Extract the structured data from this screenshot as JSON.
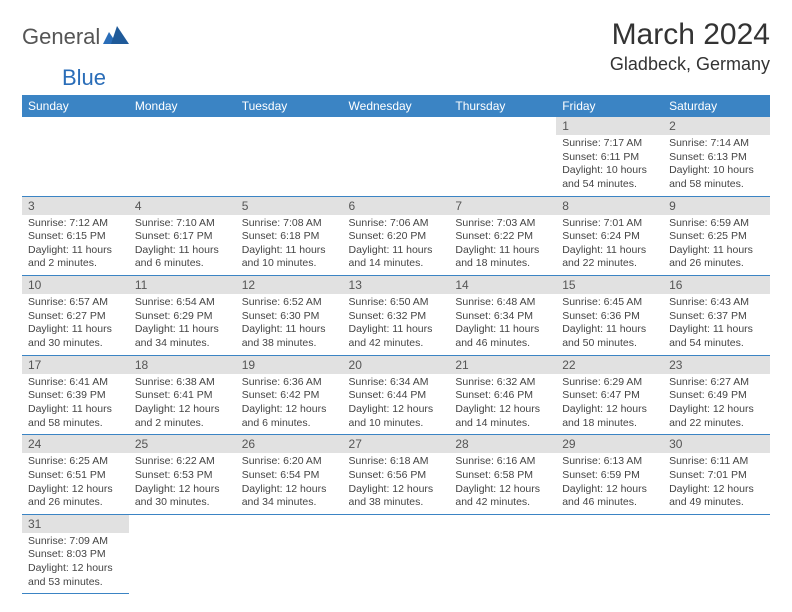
{
  "brand": {
    "part1": "General",
    "part2": "Blue"
  },
  "title": "March 2024",
  "location": "Gladbeck, Germany",
  "colors": {
    "header_bg": "#3b84c4",
    "header_text": "#ffffff",
    "daynum_bg": "#e1e1e1",
    "border": "#3b84c4",
    "brand_blue": "#2a6db8",
    "text": "#333333"
  },
  "weekdays": [
    "Sunday",
    "Monday",
    "Tuesday",
    "Wednesday",
    "Thursday",
    "Friday",
    "Saturday"
  ],
  "weeks": [
    [
      null,
      null,
      null,
      null,
      null,
      {
        "n": "1",
        "sr": "Sunrise: 7:17 AM",
        "ss": "Sunset: 6:11 PM",
        "dl": "Daylight: 10 hours and 54 minutes."
      },
      {
        "n": "2",
        "sr": "Sunrise: 7:14 AM",
        "ss": "Sunset: 6:13 PM",
        "dl": "Daylight: 10 hours and 58 minutes."
      }
    ],
    [
      {
        "n": "3",
        "sr": "Sunrise: 7:12 AM",
        "ss": "Sunset: 6:15 PM",
        "dl": "Daylight: 11 hours and 2 minutes."
      },
      {
        "n": "4",
        "sr": "Sunrise: 7:10 AM",
        "ss": "Sunset: 6:17 PM",
        "dl": "Daylight: 11 hours and 6 minutes."
      },
      {
        "n": "5",
        "sr": "Sunrise: 7:08 AM",
        "ss": "Sunset: 6:18 PM",
        "dl": "Daylight: 11 hours and 10 minutes."
      },
      {
        "n": "6",
        "sr": "Sunrise: 7:06 AM",
        "ss": "Sunset: 6:20 PM",
        "dl": "Daylight: 11 hours and 14 minutes."
      },
      {
        "n": "7",
        "sr": "Sunrise: 7:03 AM",
        "ss": "Sunset: 6:22 PM",
        "dl": "Daylight: 11 hours and 18 minutes."
      },
      {
        "n": "8",
        "sr": "Sunrise: 7:01 AM",
        "ss": "Sunset: 6:24 PM",
        "dl": "Daylight: 11 hours and 22 minutes."
      },
      {
        "n": "9",
        "sr": "Sunrise: 6:59 AM",
        "ss": "Sunset: 6:25 PM",
        "dl": "Daylight: 11 hours and 26 minutes."
      }
    ],
    [
      {
        "n": "10",
        "sr": "Sunrise: 6:57 AM",
        "ss": "Sunset: 6:27 PM",
        "dl": "Daylight: 11 hours and 30 minutes."
      },
      {
        "n": "11",
        "sr": "Sunrise: 6:54 AM",
        "ss": "Sunset: 6:29 PM",
        "dl": "Daylight: 11 hours and 34 minutes."
      },
      {
        "n": "12",
        "sr": "Sunrise: 6:52 AM",
        "ss": "Sunset: 6:30 PM",
        "dl": "Daylight: 11 hours and 38 minutes."
      },
      {
        "n": "13",
        "sr": "Sunrise: 6:50 AM",
        "ss": "Sunset: 6:32 PM",
        "dl": "Daylight: 11 hours and 42 minutes."
      },
      {
        "n": "14",
        "sr": "Sunrise: 6:48 AM",
        "ss": "Sunset: 6:34 PM",
        "dl": "Daylight: 11 hours and 46 minutes."
      },
      {
        "n": "15",
        "sr": "Sunrise: 6:45 AM",
        "ss": "Sunset: 6:36 PM",
        "dl": "Daylight: 11 hours and 50 minutes."
      },
      {
        "n": "16",
        "sr": "Sunrise: 6:43 AM",
        "ss": "Sunset: 6:37 PM",
        "dl": "Daylight: 11 hours and 54 minutes."
      }
    ],
    [
      {
        "n": "17",
        "sr": "Sunrise: 6:41 AM",
        "ss": "Sunset: 6:39 PM",
        "dl": "Daylight: 11 hours and 58 minutes."
      },
      {
        "n": "18",
        "sr": "Sunrise: 6:38 AM",
        "ss": "Sunset: 6:41 PM",
        "dl": "Daylight: 12 hours and 2 minutes."
      },
      {
        "n": "19",
        "sr": "Sunrise: 6:36 AM",
        "ss": "Sunset: 6:42 PM",
        "dl": "Daylight: 12 hours and 6 minutes."
      },
      {
        "n": "20",
        "sr": "Sunrise: 6:34 AM",
        "ss": "Sunset: 6:44 PM",
        "dl": "Daylight: 12 hours and 10 minutes."
      },
      {
        "n": "21",
        "sr": "Sunrise: 6:32 AM",
        "ss": "Sunset: 6:46 PM",
        "dl": "Daylight: 12 hours and 14 minutes."
      },
      {
        "n": "22",
        "sr": "Sunrise: 6:29 AM",
        "ss": "Sunset: 6:47 PM",
        "dl": "Daylight: 12 hours and 18 minutes."
      },
      {
        "n": "23",
        "sr": "Sunrise: 6:27 AM",
        "ss": "Sunset: 6:49 PM",
        "dl": "Daylight: 12 hours and 22 minutes."
      }
    ],
    [
      {
        "n": "24",
        "sr": "Sunrise: 6:25 AM",
        "ss": "Sunset: 6:51 PM",
        "dl": "Daylight: 12 hours and 26 minutes."
      },
      {
        "n": "25",
        "sr": "Sunrise: 6:22 AM",
        "ss": "Sunset: 6:53 PM",
        "dl": "Daylight: 12 hours and 30 minutes."
      },
      {
        "n": "26",
        "sr": "Sunrise: 6:20 AM",
        "ss": "Sunset: 6:54 PM",
        "dl": "Daylight: 12 hours and 34 minutes."
      },
      {
        "n": "27",
        "sr": "Sunrise: 6:18 AM",
        "ss": "Sunset: 6:56 PM",
        "dl": "Daylight: 12 hours and 38 minutes."
      },
      {
        "n": "28",
        "sr": "Sunrise: 6:16 AM",
        "ss": "Sunset: 6:58 PM",
        "dl": "Daylight: 12 hours and 42 minutes."
      },
      {
        "n": "29",
        "sr": "Sunrise: 6:13 AM",
        "ss": "Sunset: 6:59 PM",
        "dl": "Daylight: 12 hours and 46 minutes."
      },
      {
        "n": "30",
        "sr": "Sunrise: 6:11 AM",
        "ss": "Sunset: 7:01 PM",
        "dl": "Daylight: 12 hours and 49 minutes."
      }
    ],
    [
      {
        "n": "31",
        "sr": "Sunrise: 7:09 AM",
        "ss": "Sunset: 8:03 PM",
        "dl": "Daylight: 12 hours and 53 minutes."
      },
      null,
      null,
      null,
      null,
      null,
      null
    ]
  ]
}
